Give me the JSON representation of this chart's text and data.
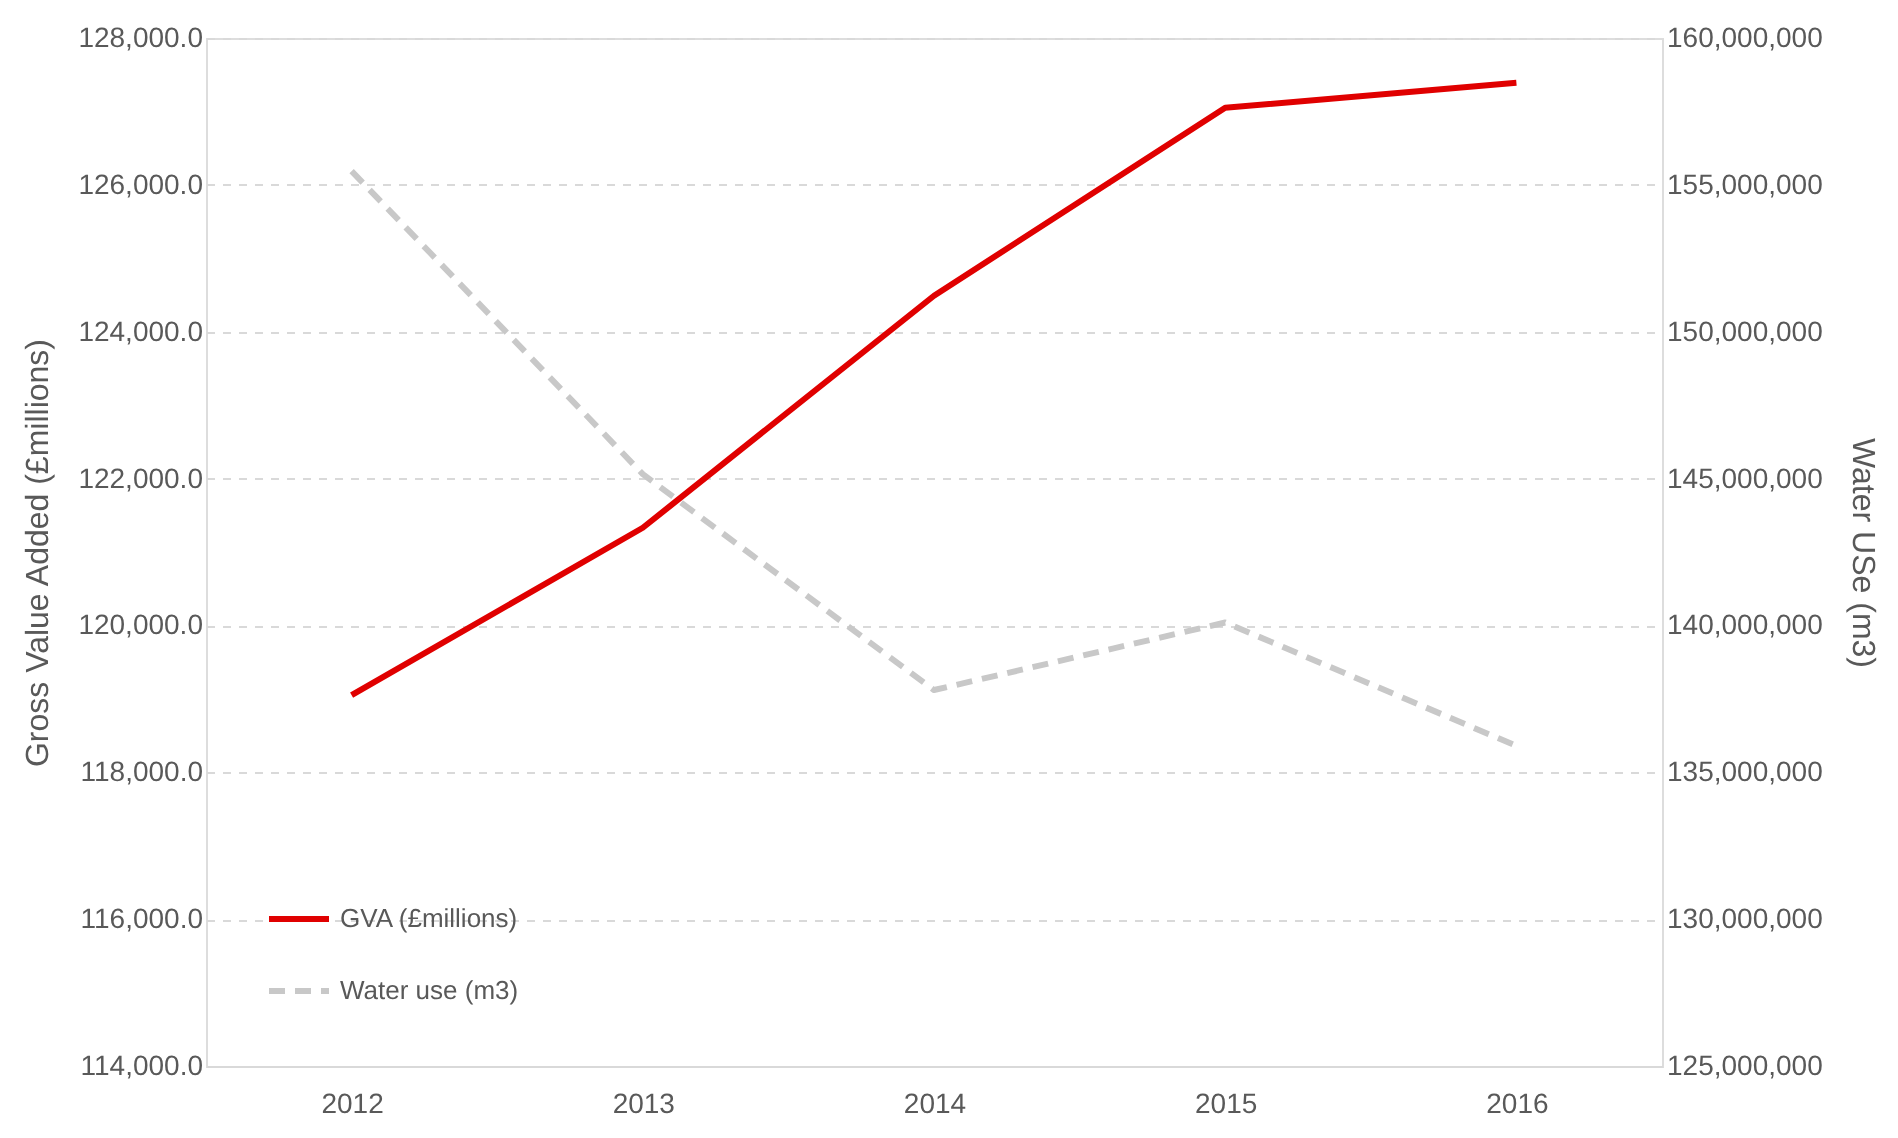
{
  "chart_data": {
    "type": "line",
    "categories": [
      "2012",
      "2013",
      "2014",
      "2015",
      "2016"
    ],
    "ylabel": "Gross Value Added (£millions)",
    "y2label": "Water USe (m3)",
    "ylim": [
      114000,
      128000
    ],
    "yticks": [
      {
        "value": 114000,
        "label": "114,000.0"
      },
      {
        "value": 116000,
        "label": "116,000.0"
      },
      {
        "value": 118000,
        "label": "118,000.0"
      },
      {
        "value": 120000,
        "label": "120,000.0"
      },
      {
        "value": 122000,
        "label": "122,000.0"
      },
      {
        "value": 124000,
        "label": "124,000.0"
      },
      {
        "value": 126000,
        "label": "126,000.0"
      },
      {
        "value": 128000,
        "label": "128,000.0"
      }
    ],
    "y2lim": [
      125000000,
      160000000
    ],
    "y2ticks": [
      {
        "value": 125000000,
        "label": "125,000,000"
      },
      {
        "value": 130000000,
        "label": "130,000,000"
      },
      {
        "value": 135000000,
        "label": "135,000,000"
      },
      {
        "value": 140000000,
        "label": "140,000,000"
      },
      {
        "value": 145000000,
        "label": "145,000,000"
      },
      {
        "value": 150000000,
        "label": "150,000,000"
      },
      {
        "value": 155000000,
        "label": "155,000,000"
      },
      {
        "value": 160000000,
        "label": "160,000,000"
      }
    ],
    "grid": "y",
    "legend": "bottom left",
    "series": [
      {
        "name": "GVA (£millions)",
        "color": "#e00000",
        "line_style": "solid",
        "values": [
          119050,
          121330,
          124490,
          127050,
          127390
        ]
      },
      {
        "name": "Water use (m3)",
        "color": "#c8c8c8",
        "line_style": "dashed",
        "axis": "y2",
        "values": [
          155470000,
          145150000,
          137800000,
          140100000,
          135900000
        ]
      }
    ]
  }
}
